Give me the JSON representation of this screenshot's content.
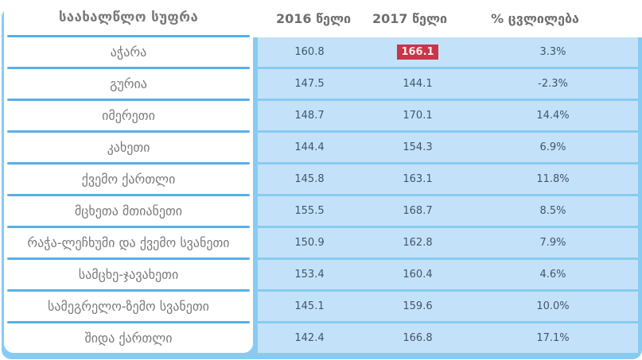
{
  "colors": {
    "backdrop_blue": "#87CBF3",
    "separator_blue": "#58AFE8",
    "cell_blue": "#C3E2FA",
    "highlight_red": "#C8364B",
    "highlight_text": "#FAEEE4",
    "value_text": "#44546A",
    "label_text": "#7A7A7A"
  },
  "table": {
    "region_header": "საახალწლო სუფრა",
    "columns": [
      "2016 წელი",
      "2017 წელი",
      "% ცვლილება"
    ],
    "rows": [
      {
        "region": "აჭარა",
        "y2016": "160.8",
        "y2017": "166.1",
        "change": "3.3%",
        "highlight_2017": true
      },
      {
        "region": "გურია",
        "y2016": "147.5",
        "y2017": "144.1",
        "change": "-2.3%",
        "highlight_2017": false
      },
      {
        "region": "იმერეთი",
        "y2016": "148.7",
        "y2017": "170.1",
        "change": "14.4%",
        "highlight_2017": false
      },
      {
        "region": "კახეთი",
        "y2016": "144.4",
        "y2017": "154.3",
        "change": "6.9%",
        "highlight_2017": false
      },
      {
        "region": "ქვემო ქართლი",
        "y2016": "145.8",
        "y2017": "163.1",
        "change": "11.8%",
        "highlight_2017": false
      },
      {
        "region": "მცხეთა მთიანეთი",
        "y2016": "155.5",
        "y2017": "168.7",
        "change": "8.5%",
        "highlight_2017": false
      },
      {
        "region": "რაჭა-ლეჩხუმი და ქვემო სვანეთი",
        "y2016": "150.9",
        "y2017": "162.8",
        "change": "7.9%",
        "highlight_2017": false
      },
      {
        "region": "სამცხე-ჯავახეთი",
        "y2016": "153.4",
        "y2017": "160.4",
        "change": "4.6%",
        "highlight_2017": false
      },
      {
        "region": "სამეგრელო-ზემო სვანეთი",
        "y2016": "145.1",
        "y2017": "159.6",
        "change": "10.0%",
        "highlight_2017": false
      },
      {
        "region": "შიდა ქართლი",
        "y2016": "142.4",
        "y2017": "166.8",
        "change": "17.1%",
        "highlight_2017": false
      }
    ]
  },
  "chart_data": {
    "type": "table",
    "title": "საახალწლო სუფრა",
    "columns": [
      "საახალწლო სუფრა",
      "2016 წელი",
      "2017 წელი",
      "% ცვლილება"
    ],
    "categories": [
      "აჭარა",
      "გურია",
      "იმერეთი",
      "კახეთი",
      "ქვემო ქართლი",
      "მცხეთა მთიანეთი",
      "რაჭა-ლეჩხუმი და ქვემო სვანეთი",
      "სამცხე-ჯავახეთი",
      "სამეგრელო-ზემო სვანეთი",
      "შიდა ქართლი"
    ],
    "series": [
      {
        "name": "2016 წელი",
        "values": [
          160.8,
          147.5,
          148.7,
          144.4,
          145.8,
          155.5,
          150.9,
          153.4,
          145.1,
          142.4
        ]
      },
      {
        "name": "2017 წელი",
        "values": [
          166.1,
          144.1,
          170.1,
          154.3,
          163.1,
          168.7,
          162.8,
          160.4,
          159.6,
          166.8
        ]
      },
      {
        "name": "% ცვლილება",
        "values": [
          "3.3%",
          "-2.3%",
          "14.4%",
          "6.9%",
          "11.8%",
          "8.5%",
          "7.9%",
          "4.6%",
          "10.0%",
          "17.1%"
        ]
      }
    ],
    "annotations": [
      {
        "row": "აჭარა",
        "column": "2017 წელი",
        "value": 166.1,
        "style": "red-highlight"
      }
    ],
    "legend_position": "none",
    "grid": false
  }
}
